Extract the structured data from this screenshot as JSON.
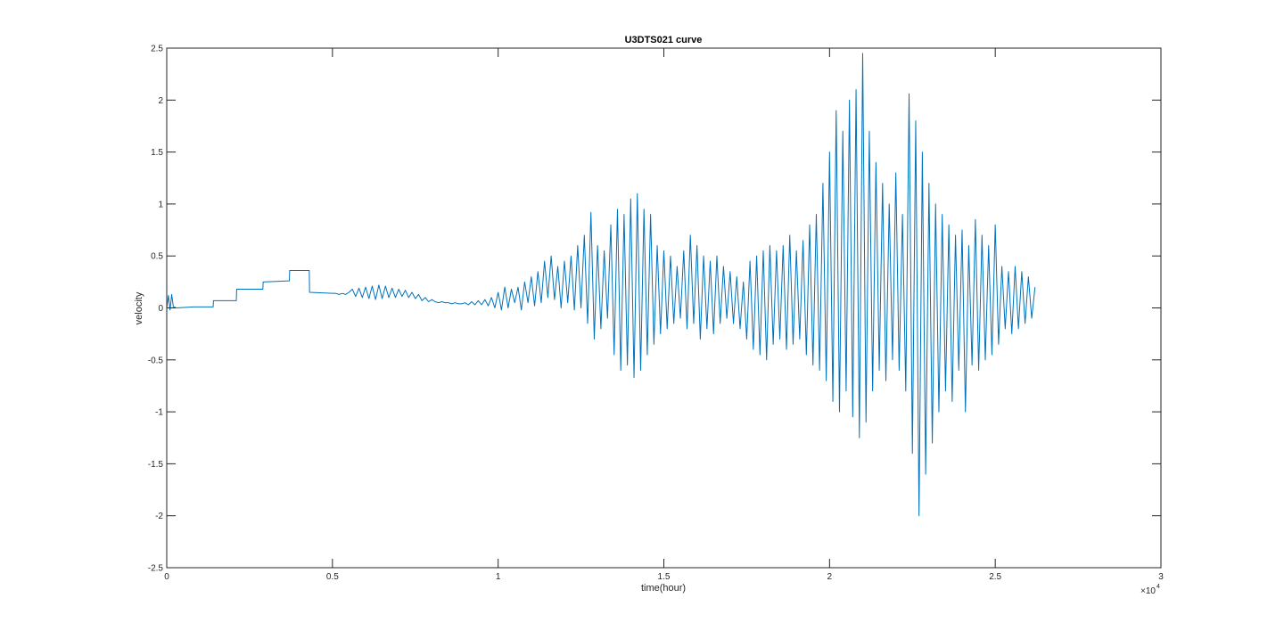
{
  "chart_data": {
    "type": "line",
    "title": "U3DTS021 curve",
    "x_label": "time(hour)",
    "y_label": "velocity",
    "x_multiplier": "×10",
    "x_multiplier_exponent": "4",
    "xlim": [
      0,
      3
    ],
    "xticks": [
      0,
      0.5,
      1,
      1.5,
      2,
      2.5,
      3
    ],
    "ylim": [
      -2.5,
      2.5
    ],
    "yticks": [
      -2.5,
      -2,
      -1.5,
      -1,
      -0.5,
      0,
      0.5,
      1,
      1.5,
      2,
      2.5
    ],
    "grid": false,
    "series": [
      {
        "color": "#0072bd",
        "x": [
          0,
          0.005,
          0.01,
          0.015,
          0.02,
          0.03,
          0.08,
          0.14,
          0.141,
          0.21,
          0.211,
          0.29,
          0.291,
          0.37,
          0.371,
          0.43,
          0.431,
          0.5,
          0.51,
          0.52,
          0.53,
          0.54,
          0.55,
          0.56,
          0.57,
          0.58,
          0.59,
          0.6,
          0.61,
          0.62,
          0.63,
          0.64,
          0.65,
          0.66,
          0.67,
          0.68,
          0.69,
          0.7,
          0.71,
          0.72,
          0.73,
          0.74,
          0.75,
          0.76,
          0.77,
          0.78,
          0.79,
          0.8,
          0.81,
          0.82,
          0.83,
          0.84,
          0.85,
          0.86,
          0.87,
          0.88,
          0.89,
          0.9,
          0.91,
          0.92,
          0.93,
          0.94,
          0.95,
          0.96,
          0.97,
          0.98,
          0.99,
          1.0,
          1.01,
          1.02,
          1.03,
          1.04,
          1.05,
          1.06,
          1.07,
          1.08,
          1.09,
          1.1,
          1.11,
          1.12,
          1.13,
          1.14,
          1.15,
          1.16,
          1.17,
          1.18,
          1.19,
          1.2,
          1.21,
          1.22,
          1.23,
          1.24,
          1.25,
          1.26,
          1.27,
          1.28,
          1.29,
          1.3,
          1.31,
          1.32,
          1.33,
          1.34,
          1.35,
          1.36,
          1.37,
          1.38,
          1.39,
          1.4,
          1.41,
          1.42,
          1.43,
          1.44,
          1.45,
          1.46,
          1.47,
          1.48,
          1.49,
          1.5,
          1.51,
          1.52,
          1.53,
          1.54,
          1.55,
          1.56,
          1.57,
          1.58,
          1.59,
          1.6,
          1.61,
          1.62,
          1.63,
          1.64,
          1.65,
          1.66,
          1.67,
          1.68,
          1.69,
          1.7,
          1.71,
          1.72,
          1.73,
          1.74,
          1.75,
          1.76,
          1.77,
          1.78,
          1.79,
          1.8,
          1.81,
          1.82,
          1.83,
          1.84,
          1.85,
          1.86,
          1.87,
          1.88,
          1.89,
          1.9,
          1.91,
          1.92,
          1.93,
          1.94,
          1.95,
          1.96,
          1.97,
          1.98,
          1.99,
          2.0,
          2.01,
          2.02,
          2.03,
          2.04,
          2.05,
          2.06,
          2.07,
          2.08,
          2.09,
          2.1,
          2.11,
          2.12,
          2.13,
          2.14,
          2.15,
          2.16,
          2.17,
          2.18,
          2.19,
          2.2,
          2.21,
          2.22,
          2.23,
          2.24,
          2.25,
          2.26,
          2.27,
          2.28,
          2.29,
          2.3,
          2.31,
          2.32,
          2.33,
          2.34,
          2.35,
          2.36,
          2.37,
          2.38,
          2.39,
          2.4,
          2.41,
          2.42,
          2.43,
          2.44,
          2.45,
          2.46,
          2.47,
          2.48,
          2.49,
          2.5,
          2.51,
          2.52,
          2.53,
          2.54,
          2.55,
          2.56,
          2.57,
          2.58,
          2.59,
          2.6,
          2.61,
          2.62
        ],
        "values": [
          0,
          0.12,
          -0.02,
          0.13,
          0.01,
          0.0,
          0.01,
          0.01,
          0.07,
          0.07,
          0.18,
          0.18,
          0.25,
          0.26,
          0.36,
          0.36,
          0.15,
          0.14,
          0.14,
          0.13,
          0.14,
          0.13,
          0.15,
          0.18,
          0.11,
          0.19,
          0.1,
          0.2,
          0.09,
          0.21,
          0.08,
          0.22,
          0.09,
          0.21,
          0.1,
          0.19,
          0.1,
          0.18,
          0.11,
          0.17,
          0.1,
          0.15,
          0.09,
          0.13,
          0.07,
          0.1,
          0.06,
          0.08,
          0.06,
          0.05,
          0.06,
          0.05,
          0.05,
          0.04,
          0.05,
          0.04,
          0.04,
          0.05,
          0.03,
          0.06,
          0.03,
          0.07,
          0.03,
          0.08,
          0.02,
          0.1,
          0.0,
          0.15,
          -0.02,
          0.2,
          0.0,
          0.18,
          0.05,
          0.2,
          -0.02,
          0.25,
          0.05,
          0.3,
          0.02,
          0.35,
          0.05,
          0.45,
          0.1,
          0.5,
          0.08,
          0.4,
          0.0,
          0.45,
          0.05,
          0.5,
          -0.02,
          0.6,
          0.0,
          0.7,
          -0.15,
          0.92,
          -0.3,
          0.6,
          -0.2,
          0.55,
          -0.1,
          0.8,
          -0.45,
          0.95,
          -0.6,
          0.9,
          -0.55,
          1.05,
          -0.67,
          1.1,
          -0.6,
          0.95,
          -0.45,
          0.9,
          -0.35,
          0.6,
          -0.25,
          0.55,
          -0.2,
          0.5,
          -0.15,
          0.4,
          -0.1,
          0.55,
          -0.2,
          0.7,
          -0.15,
          0.6,
          -0.3,
          0.5,
          -0.2,
          0.45,
          -0.25,
          0.5,
          -0.15,
          0.4,
          -0.1,
          0.35,
          -0.15,
          0.3,
          -0.2,
          0.25,
          -0.3,
          0.45,
          -0.4,
          0.5,
          -0.45,
          0.55,
          -0.5,
          0.6,
          -0.35,
          0.55,
          -0.3,
          0.6,
          -0.4,
          0.7,
          -0.35,
          0.55,
          -0.3,
          0.65,
          -0.45,
          0.8,
          -0.55,
          0.9,
          -0.6,
          1.2,
          -0.7,
          1.5,
          -0.9,
          1.9,
          -1.0,
          1.7,
          -0.8,
          2.0,
          -1.05,
          2.1,
          -1.25,
          2.45,
          -1.1,
          1.7,
          -0.8,
          1.4,
          -0.6,
          1.2,
          -0.7,
          1.0,
          -0.5,
          1.3,
          -0.6,
          0.9,
          -0.8,
          2.06,
          -1.4,
          1.8,
          -2.0,
          1.5,
          -1.6,
          1.2,
          -1.3,
          1.0,
          -1.0,
          0.9,
          -0.8,
          0.8,
          -0.9,
          0.7,
          -0.6,
          0.75,
          -1.0,
          0.6,
          -0.55,
          0.85,
          -0.6,
          0.7,
          -0.5,
          0.6,
          -0.45,
          0.8,
          -0.35,
          0.4,
          -0.2,
          0.35,
          -0.25,
          0.4,
          -0.2,
          0.35,
          -0.15,
          0.3,
          -0.1,
          0.2
        ]
      }
    ]
  }
}
